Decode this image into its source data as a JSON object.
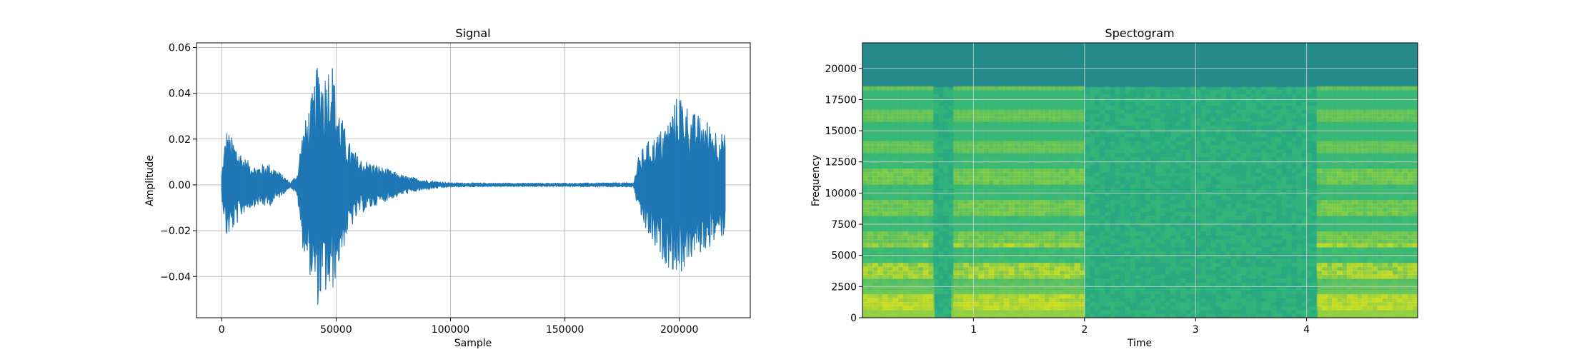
{
  "chart_data": [
    {
      "type": "line",
      "title": "Signal",
      "xlabel": "Sample",
      "ylabel": "Amplitude",
      "xlim": [
        -11000,
        231000
      ],
      "ylim": [
        -0.058,
        0.062
      ],
      "xticks": [
        0,
        50000,
        100000,
        150000,
        200000
      ],
      "xtick_labels": [
        "0",
        "50000",
        "100000",
        "150000",
        "200000"
      ],
      "yticks": [
        -0.04,
        -0.02,
        0.0,
        0.02,
        0.04,
        0.06
      ],
      "ytick_labels": [
        "−0.04",
        "−0.02",
        "0.00",
        "0.02",
        "0.04",
        "0.06"
      ],
      "grid": true,
      "color": "#1f77b4",
      "series": [
        {
          "x": [
            0,
            2000,
            5000,
            10000,
            15000,
            20000,
            25000,
            30000,
            33000,
            35000,
            40000,
            42000,
            45000,
            48000,
            50000,
            55000,
            60000,
            70000,
            80000,
            90000,
            95000,
            100000,
            120000,
            150000,
            180000,
            182000,
            185000,
            190000,
            195000,
            200000,
            205000,
            210000,
            215000,
            220000
          ],
          "upper": [
            0.005,
            0.025,
            0.02,
            0.012,
            0.008,
            0.01,
            0.006,
            0.001,
            0.005,
            0.022,
            0.042,
            0.055,
            0.05,
            0.058,
            0.04,
            0.02,
            0.012,
            0.008,
            0.004,
            0.002,
            0.0015,
            0.001,
            0.0008,
            0.0008,
            0.001,
            0.012,
            0.018,
            0.022,
            0.028,
            0.042,
            0.032,
            0.03,
            0.026,
            0.022
          ],
          "lower": [
            -0.005,
            -0.024,
            -0.02,
            -0.012,
            -0.009,
            -0.01,
            -0.006,
            -0.001,
            -0.005,
            -0.026,
            -0.045,
            -0.053,
            -0.048,
            -0.05,
            -0.04,
            -0.022,
            -0.013,
            -0.008,
            -0.004,
            -0.002,
            -0.0015,
            -0.001,
            -0.0008,
            -0.0008,
            -0.001,
            -0.012,
            -0.02,
            -0.03,
            -0.036,
            -0.04,
            -0.033,
            -0.03,
            -0.026,
            -0.022
          ]
        }
      ]
    },
    {
      "type": "heatmap",
      "title": "Spectogram",
      "xlabel": "Time",
      "ylabel": "Frequency",
      "xlim": [
        0,
        5
      ],
      "ylim": [
        0,
        22050
      ],
      "xticks": [
        1,
        2,
        3,
        4
      ],
      "xtick_labels": [
        "1",
        "2",
        "3",
        "4"
      ],
      "yticks": [
        0,
        2500,
        5000,
        7500,
        10000,
        12500,
        15000,
        17500,
        20000
      ],
      "ytick_labels": [
        "0",
        "2500",
        "5000",
        "7500",
        "10000",
        "12500",
        "15000",
        "17500",
        "20000"
      ],
      "grid": true,
      "colormap": "viridis",
      "cutoff_frequency": 18500,
      "active_time_ranges": [
        [
          0,
          0.65
        ],
        [
          0.8,
          2.0
        ],
        [
          4.1,
          5.0
        ]
      ],
      "colors": {
        "dark_band": "#258a8a",
        "base": "#2bb07f",
        "mid": "#5ac864",
        "bright": "#b5de2b",
        "brightest": "#e2e418"
      }
    }
  ]
}
